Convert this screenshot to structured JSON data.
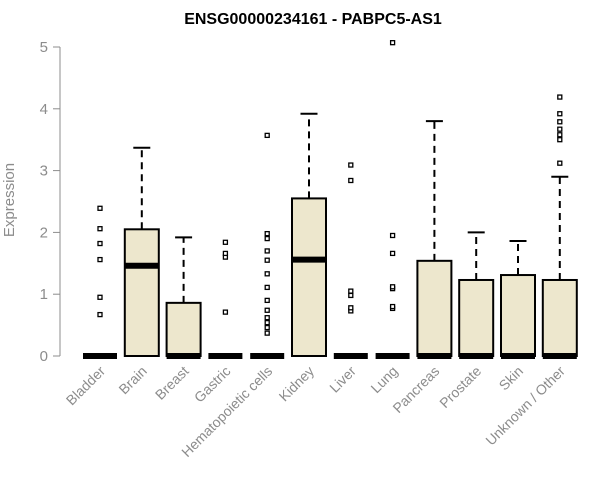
{
  "chart_data": {
    "type": "boxplot",
    "title": "ENSG00000234161 - PABPC5-AS1",
    "ylabel": "Expression",
    "xlabel": "",
    "ylim": [
      0,
      5
    ],
    "yticks": [
      0,
      1,
      2,
      3,
      4,
      5
    ],
    "grid": false,
    "box_color": "#ede7cd",
    "outline_color": "#000000",
    "axis_color": "#8c8c8c",
    "categories": [
      "Bladder",
      "Brain",
      "Breast",
      "Gastric",
      "Hematopoietic cells",
      "Kidney",
      "Liver",
      "Lung",
      "Pancreas",
      "Prostate",
      "Skin",
      "Unknown / Other"
    ],
    "boxes": [
      {
        "category": "Bladder",
        "whisker_low": 0,
        "q1": 0,
        "median": 0,
        "q3": 0,
        "whisker_high": 0,
        "outliers": [
          0.67,
          0.95,
          1.56,
          1.82,
          2.06,
          2.39
        ]
      },
      {
        "category": "Brain",
        "whisker_low": 0,
        "q1": 0,
        "median": 1.46,
        "q3": 2.05,
        "whisker_high": 3.37,
        "outliers": []
      },
      {
        "category": "Breast",
        "whisker_low": 0,
        "q1": 0,
        "median": 0,
        "q3": 0.86,
        "whisker_high": 1.92,
        "outliers": []
      },
      {
        "category": "Gastric",
        "whisker_low": 0,
        "q1": 0,
        "median": 0,
        "q3": 0,
        "whisker_high": 0,
        "outliers": [
          0.71,
          1.6,
          1.66,
          1.84
        ]
      },
      {
        "category": "Hematopoietic cells",
        "whisker_low": 0,
        "q1": 0,
        "median": 0,
        "q3": 0,
        "whisker_high": 0,
        "outliers": [
          0.37,
          0.46,
          0.54,
          0.62,
          0.74,
          0.9,
          1.11,
          1.33,
          1.55,
          1.7,
          1.9,
          1.98,
          3.57
        ]
      },
      {
        "category": "Kidney",
        "whisker_low": 0,
        "q1": 0,
        "median": 1.56,
        "q3": 2.55,
        "whisker_high": 3.92,
        "outliers": []
      },
      {
        "category": "Liver",
        "whisker_low": 0,
        "q1": 0,
        "median": 0,
        "q3": 0,
        "whisker_high": 0,
        "outliers": [
          0.73,
          0.78,
          0.98,
          1.05,
          2.84,
          3.09
        ]
      },
      {
        "category": "Lung",
        "whisker_low": 0,
        "q1": 0,
        "median": 0,
        "q3": 0,
        "whisker_high": 0,
        "outliers": [
          0.77,
          0.8,
          1.09,
          1.12,
          1.66,
          1.95,
          5.07
        ]
      },
      {
        "category": "Pancreas",
        "whisker_low": 0,
        "q1": 0,
        "median": 0,
        "q3": 1.54,
        "whisker_high": 3.8,
        "outliers": []
      },
      {
        "category": "Prostate",
        "whisker_low": 0,
        "q1": 0,
        "median": 0,
        "q3": 1.23,
        "whisker_high": 2.0,
        "outliers": []
      },
      {
        "category": "Skin",
        "whisker_low": 0,
        "q1": 0,
        "median": 0,
        "q3": 1.31,
        "whisker_high": 1.86,
        "outliers": []
      },
      {
        "category": "Unknown / Other",
        "whisker_low": 0,
        "q1": 0,
        "median": 0,
        "q3": 1.23,
        "whisker_high": 2.9,
        "outliers": [
          3.12,
          3.5,
          3.58,
          3.67,
          3.79,
          3.92,
          4.19
        ]
      }
    ]
  }
}
